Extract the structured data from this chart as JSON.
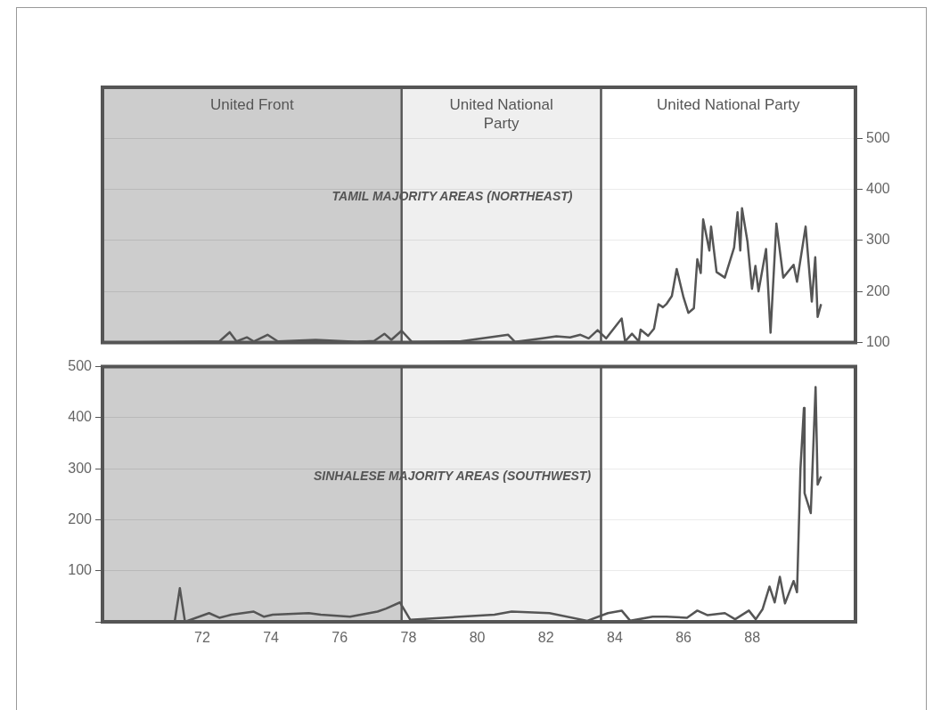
{
  "chart_data": [
    {
      "type": "line",
      "annotations": [
        "TAMIL MAJORITY AREAS (NORTHEAST)"
      ],
      "x": [
        69.5,
        72.5,
        72.8,
        73.0,
        73.3,
        73.5,
        73.9,
        74.2,
        75.3,
        76.5,
        77.0,
        77.3,
        77.5,
        77.8,
        78.1,
        79.5,
        80.9,
        81.1,
        81.9,
        82.3,
        82.7,
        83.0,
        83.24,
        83.5,
        83.75,
        84.2,
        84.3,
        84.5,
        84.7,
        84.75,
        84.97,
        85.14,
        85.27,
        85.4,
        85.5,
        85.66,
        85.8,
        86.0,
        86.14,
        86.3,
        86.4,
        86.5,
        86.57,
        86.75,
        86.8,
        86.96,
        87.2,
        87.47,
        87.57,
        87.65,
        87.7,
        87.86,
        87.99,
        88.09,
        88.18,
        88.4,
        88.53,
        88.7,
        88.9,
        89.2,
        89.3,
        89.55,
        89.73,
        89.83,
        89.9,
        90.0
      ],
      "series": [
        {
          "color": "#555555",
          "axis": "y2",
          "values": [
            100,
            102,
            120,
            102,
            110,
            102,
            115,
            102,
            105,
            101,
            103,
            117,
            105,
            123,
            101,
            102,
            115,
            101,
            108,
            112,
            110,
            115,
            108,
            124,
            108,
            147,
            102,
            117,
            102,
            125,
            113,
            127,
            175,
            169,
            175,
            191,
            244,
            188,
            158,
            167,
            263,
            236,
            341,
            280,
            327,
            238,
            227,
            286,
            355,
            280,
            363,
            297,
            205,
            250,
            200,
            283,
            119,
            333,
            227,
            252,
            219,
            327,
            180,
            267,
            150,
            175
          ]
        }
      ],
      "y2lim": [
        100,
        600
      ],
      "y2ticks": [
        100,
        200,
        300,
        400,
        500
      ],
      "xlim": [
        69.1,
        91.0
      ],
      "tick_labels": "y",
      "grid": "y",
      "bands": [
        {
          "axis": "x",
          "from": 69.1,
          "to": 77.8,
          "label": "United Front",
          "color": "#c4c4c4"
        },
        {
          "axis": "x",
          "from": 77.8,
          "to": 83.6,
          "label": "United National Party",
          "color": "#ececec"
        },
        {
          "axis": "x",
          "from": 83.6,
          "to": 91.0,
          "label": "United National Party",
          "color": "#ffffff"
        }
      ]
    },
    {
      "type": "line",
      "annotations": [
        "SINHALESE MAJORITY AREAS (SOUTHWEST)"
      ],
      "x": [
        69.5,
        71.2,
        71.35,
        71.5,
        72.2,
        72.5,
        72.85,
        73.5,
        73.8,
        74.05,
        75.1,
        75.45,
        76.3,
        77.1,
        77.35,
        77.75,
        78.05,
        79.5,
        80.5,
        81.0,
        82.1,
        83.2,
        83.8,
        84.2,
        84.45,
        85.1,
        85.5,
        86.1,
        86.4,
        86.7,
        87.2,
        87.5,
        87.9,
        88.1,
        88.3,
        88.5,
        88.65,
        88.8,
        88.95,
        89.2,
        89.3,
        89.4,
        89.5,
        89.52,
        89.7,
        89.84,
        89.9,
        90.0
      ],
      "series": [
        {
          "color": "#555555",
          "values": [
            0,
            0,
            66,
            0,
            17,
            8,
            14,
            20,
            10,
            14,
            17,
            14,
            10,
            20,
            26,
            38,
            4,
            10,
            14,
            20,
            17,
            2,
            17,
            22,
            2,
            10,
            10,
            8,
            22,
            13,
            17,
            5,
            22,
            5,
            25,
            69,
            38,
            88,
            36,
            80,
            58,
            300,
            419,
            252,
            213,
            460,
            269,
            285
          ]
        }
      ],
      "ylim": [
        0,
        500
      ],
      "yticks": [
        {
          "value": 0,
          "label": null
        },
        100,
        200,
        300,
        400,
        500
      ],
      "xlim": [
        69.1,
        91.0
      ],
      "xticks": [
        72,
        74,
        76,
        78,
        80,
        82,
        84,
        86,
        88
      ],
      "grid": "y",
      "bands": [
        {
          "axis": "x",
          "from": 69.1,
          "to": 77.8,
          "color": "#c4c4c4"
        },
        {
          "axis": "x",
          "from": 77.8,
          "to": 83.6,
          "color": "#ececec"
        },
        {
          "axis": "x",
          "from": 83.6,
          "to": 91.0,
          "color": "#ffffff"
        }
      ]
    }
  ]
}
